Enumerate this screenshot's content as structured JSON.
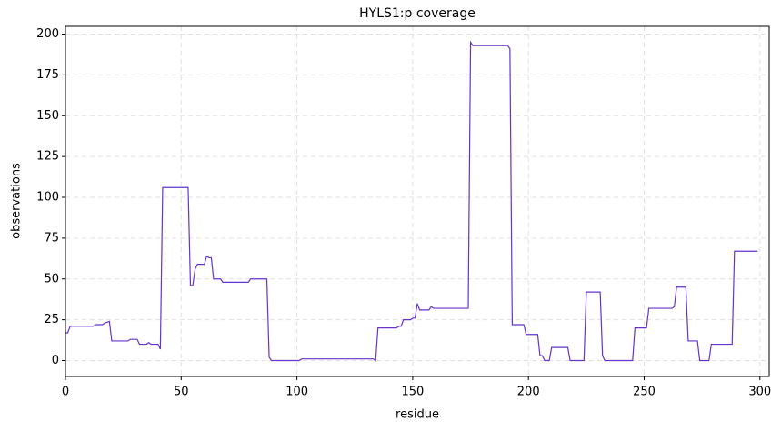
{
  "chart_data": {
    "type": "line",
    "title": "HYLS1:p coverage",
    "x_label": "residue",
    "y_label": "observations",
    "series": [
      {
        "name": "HYLS1:p",
        "color": "#6633cc",
        "x": [
          0,
          1,
          2,
          12,
          13,
          16,
          17,
          19,
          20,
          27,
          28,
          31,
          32,
          35,
          36,
          37,
          40,
          41,
          42,
          53,
          54,
          55,
          56,
          57,
          60,
          61,
          62,
          63,
          64,
          67,
          68,
          79,
          80,
          87,
          88,
          89,
          101,
          102,
          133,
          134,
          135,
          143,
          144,
          145,
          146,
          149,
          150,
          151,
          152,
          153,
          157,
          158,
          159,
          174,
          175,
          176,
          191,
          192,
          193,
          198,
          199,
          204,
          205,
          206,
          207,
          209,
          210,
          217,
          218,
          224,
          225,
          231,
          232,
          233,
          245,
          246,
          251,
          252,
          262,
          263,
          264,
          268,
          269,
          273,
          274,
          278,
          279,
          288,
          289,
          299
        ],
        "values": [
          17,
          17,
          21,
          21,
          22,
          22,
          23,
          24,
          12,
          12,
          13,
          13,
          10,
          10,
          11,
          10,
          10,
          7,
          106,
          106,
          46,
          46,
          56,
          59,
          59,
          64,
          63,
          63,
          50,
          50,
          48,
          48,
          50,
          50,
          2,
          0,
          0,
          1,
          1,
          0,
          20,
          20,
          21,
          21,
          25,
          25,
          26,
          26,
          35,
          31,
          31,
          33,
          32,
          32,
          195,
          193,
          193,
          191,
          22,
          22,
          16,
          16,
          3,
          3,
          0,
          0,
          8,
          8,
          0,
          0,
          42,
          42,
          3,
          0,
          0,
          20,
          20,
          32,
          32,
          33,
          45,
          45,
          12,
          12,
          0,
          0,
          10,
          10,
          67,
          67
        ]
      }
    ],
    "xlim": [
      0,
      304
    ],
    "ylim": [
      -9.75,
      204.75
    ],
    "xticks": [
      0,
      50,
      100,
      150,
      200,
      250,
      300
    ],
    "yticks": [
      0,
      25,
      50,
      75,
      100,
      125,
      150,
      175,
      200
    ],
    "grid": true
  }
}
